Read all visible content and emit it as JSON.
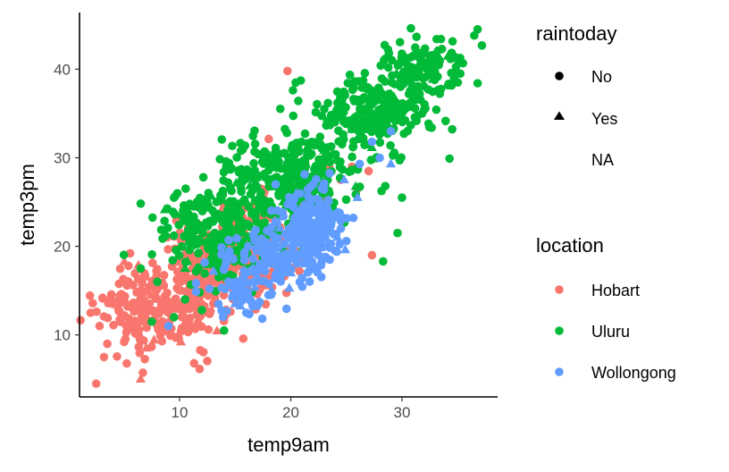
{
  "chart_data": {
    "type": "scatter",
    "xlabel": "temp9am",
    "ylabel": "temp3pm",
    "xlim": [
      1.0,
      38.6
    ],
    "ylim": [
      3.0,
      46.4
    ],
    "x_ticks": [
      10,
      20,
      30
    ],
    "y_ticks": [
      10,
      20,
      30,
      40
    ],
    "grid": false,
    "legends": [
      {
        "title": "raintoday",
        "placement": "right",
        "entries": [
          {
            "label": "No",
            "shape": "circle"
          },
          {
            "label": "Yes",
            "shape": "triangle"
          },
          {
            "label": "NA",
            "shape": "none"
          }
        ]
      },
      {
        "title": "location",
        "placement": "right",
        "entries": [
          {
            "label": "Hobart",
            "color": "#F8766D"
          },
          {
            "label": "Uluru",
            "color": "#00BA38"
          },
          {
            "label": "Wollongong",
            "color": "#619CFF"
          }
        ]
      }
    ],
    "series": [
      {
        "name": "Hobart",
        "color": "#F8766D",
        "clusters": [
          {
            "cx": 8.5,
            "cy": 13.5,
            "sx": 2.8,
            "sy": 2.6,
            "n": 260
          },
          {
            "cx": 14.5,
            "cy": 18.5,
            "sx": 2.4,
            "sy": 2.4,
            "n": 260
          },
          {
            "cx": 18.5,
            "cy": 22.0,
            "sx": 2.0,
            "sy": 2.6,
            "n": 80
          }
        ],
        "points": [
          [
            2.5,
            4.5,
            "No"
          ],
          [
            3.2,
            7.5,
            "No"
          ],
          [
            2.0,
            12.5,
            "No"
          ],
          [
            2.8,
            11.0,
            "No"
          ],
          [
            6.5,
            5.0,
            "Yes"
          ],
          [
            11.3,
            6.8,
            "No"
          ],
          [
            7.0,
            8.5,
            "Yes"
          ],
          [
            19.7,
            39.8,
            "No"
          ],
          [
            27.3,
            19.0,
            "No"
          ],
          [
            25.5,
            29.0,
            "No"
          ],
          [
            27.0,
            28.5,
            "No"
          ],
          [
            26.0,
            26.5,
            "No"
          ],
          [
            22.8,
            25.5,
            "No"
          ],
          [
            23.5,
            28.8,
            "No"
          ],
          [
            3.5,
            9.0,
            "No"
          ],
          [
            4.0,
            13.5,
            "No"
          ],
          [
            24.5,
            27.5,
            "No"
          ],
          [
            21.0,
            24.5,
            "No"
          ]
        ]
      },
      {
        "name": "Uluru",
        "color": "#00BA38",
        "clusters": [
          {
            "cx": 13.5,
            "cy": 21.5,
            "sx": 2.6,
            "sy": 2.8,
            "n": 240
          },
          {
            "cx": 20.0,
            "cy": 28.0,
            "sx": 2.8,
            "sy": 2.4,
            "n": 280
          },
          {
            "cx": 27.5,
            "cy": 35.0,
            "sx": 2.6,
            "sy": 2.2,
            "n": 240
          },
          {
            "cx": 32.0,
            "cy": 40.0,
            "sx": 2.0,
            "sy": 1.8,
            "n": 120
          }
        ],
        "points": [
          [
            36.8,
            44.5,
            "No"
          ],
          [
            36.5,
            43.8,
            "No"
          ],
          [
            33.5,
            43.4,
            "No"
          ],
          [
            30.5,
            40.0,
            "No"
          ],
          [
            29.6,
            21.5,
            "No"
          ],
          [
            28.3,
            18.3,
            "No"
          ],
          [
            30.0,
            25.5,
            "No"
          ],
          [
            28.5,
            26.8,
            "No"
          ],
          [
            9.5,
            12.0,
            "No"
          ],
          [
            10.5,
            14.0,
            "No"
          ],
          [
            11.8,
            14.8,
            "No"
          ],
          [
            21.7,
            22.8,
            "No"
          ],
          [
            16.5,
            14.8,
            "No"
          ],
          [
            7.5,
            11.5,
            "No"
          ],
          [
            6.5,
            17.5,
            "No"
          ],
          [
            8.0,
            16.0,
            "No"
          ],
          [
            14.0,
            10.5,
            "No"
          ],
          [
            12.0,
            12.8,
            "No"
          ],
          [
            9.5,
            25.5,
            "No"
          ],
          [
            9.8,
            26.0,
            "No"
          ],
          [
            28.5,
            35.0,
            "Yes"
          ],
          [
            25.5,
            33.2,
            "Yes"
          ],
          [
            23.0,
            30.8,
            "Yes"
          ],
          [
            20.0,
            28.5,
            "Yes"
          ],
          [
            22.5,
            28.0,
            "Yes"
          ],
          [
            18.0,
            24.0,
            "Yes"
          ],
          [
            19.5,
            24.5,
            "Yes"
          ],
          [
            12.0,
            20.5,
            "Yes"
          ],
          [
            14.5,
            22.5,
            "Yes"
          ],
          [
            16.0,
            25.0,
            "Yes"
          ],
          [
            29.5,
            39.5,
            "Yes"
          ],
          [
            31.5,
            40.5,
            "Yes"
          ],
          [
            21.0,
            24.5,
            "Yes"
          ],
          [
            10.5,
            17.5,
            "Yes"
          ]
        ]
      },
      {
        "name": "Wollongong",
        "color": "#619CFF",
        "clusters": [
          {
            "cx": 22.0,
            "cy": 22.5,
            "sx": 1.4,
            "sy": 2.2,
            "n": 180
          },
          {
            "cx": 18.5,
            "cy": 19.0,
            "sx": 1.8,
            "sy": 1.8,
            "n": 120
          },
          {
            "cx": 15.5,
            "cy": 16.0,
            "sx": 1.8,
            "sy": 1.8,
            "n": 50
          }
        ],
        "points": [
          [
            26.2,
            29.3,
            "No"
          ],
          [
            27.3,
            31.8,
            "No"
          ],
          [
            29.0,
            33.0,
            "No"
          ],
          [
            25.0,
            20.6,
            "No"
          ],
          [
            24.0,
            19.5,
            "No"
          ],
          [
            28.0,
            30.0,
            "No"
          ],
          [
            9.0,
            11.0,
            "No"
          ],
          [
            13.5,
            13.5,
            "No"
          ],
          [
            16.0,
            12.5,
            "No"
          ],
          [
            17.0,
            13.3,
            "No"
          ],
          [
            18.0,
            14.5,
            "No"
          ],
          [
            23.5,
            18.5,
            "No"
          ],
          [
            24.5,
            22.0,
            "No"
          ],
          [
            29.0,
            29.3,
            "Yes"
          ],
          [
            24.2,
            21.0,
            "Yes"
          ],
          [
            26.0,
            25.5,
            "Yes"
          ],
          [
            23.5,
            23.0,
            "Yes"
          ],
          [
            22.0,
            20.0,
            "Yes"
          ],
          [
            21.0,
            19.5,
            "Yes"
          ],
          [
            16.5,
            14.0,
            "Yes"
          ],
          [
            15.0,
            13.5,
            "Yes"
          ],
          [
            20.0,
            17.0,
            "Yes"
          ],
          [
            24.8,
            27.5,
            "Yes"
          ]
        ]
      }
    ]
  }
}
